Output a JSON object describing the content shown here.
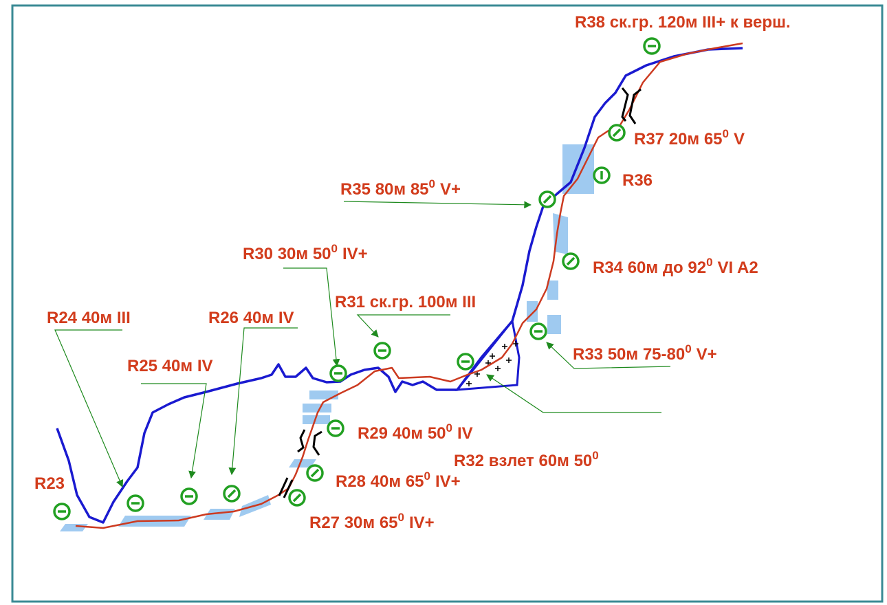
{
  "labels": [
    {
      "text": "R38 ск.гр. 120м III+ к верш."
    },
    {
      "text": "R37 20м 65",
      "sup": "0",
      "tail": "V"
    },
    {
      "text": "R36"
    },
    {
      "text": "R35 80м 85",
      "sup": "0",
      "tail": "V+"
    },
    {
      "text": "R34 60м до 92",
      "sup": "0",
      "tail": "VI A2"
    },
    {
      "text": "R30 30м 50",
      "sup": "0",
      "tail": "IV+"
    },
    {
      "text": "R31 ск.гр. 100м III"
    },
    {
      "text": "R24 40м III"
    },
    {
      "text": "R26 40м IV"
    },
    {
      "text": "R25 40м IV"
    },
    {
      "text": "R33 50м 75-80",
      "sup": "0",
      "tail": "V+"
    },
    {
      "text": "R29 40м 50",
      "sup": "0",
      "tail": "IV"
    },
    {
      "text": "R32 взлет 60м 50",
      "sup": "0"
    },
    {
      "text": "R28 40м 65",
      "sup": "0",
      "tail": "IV+"
    },
    {
      "text": "R23"
    },
    {
      "text": "R27 30м 65",
      "sup": "0",
      "tail": "IV+"
    }
  ]
}
